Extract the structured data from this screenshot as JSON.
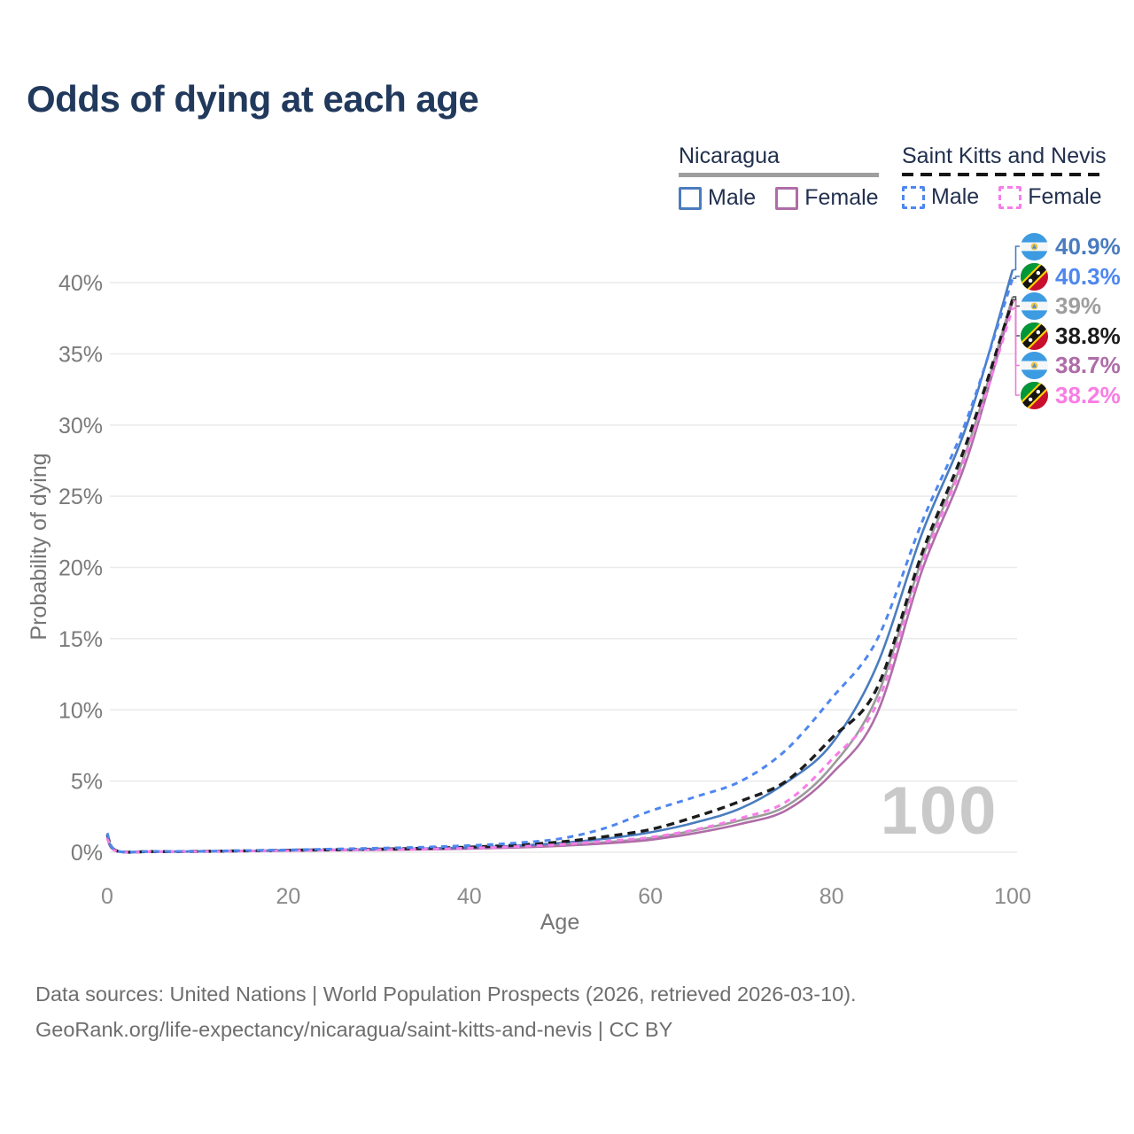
{
  "title": "Odds of dying at each age",
  "legend": {
    "groups": [
      {
        "label": "Nicaragua",
        "underline_style": "solid",
        "underline_color": "#9e9e9e",
        "items": [
          {
            "label": "Male",
            "color": "#4a7cbe",
            "style": "solid"
          },
          {
            "label": "Female",
            "color": "#af6da7",
            "style": "solid"
          }
        ]
      },
      {
        "label": "Saint Kitts and Nevis",
        "underline_style": "dashed",
        "underline_color": "#151515",
        "items": [
          {
            "label": "Male",
            "color": "#4e87ef",
            "style": "dashed"
          },
          {
            "label": "Female",
            "color": "#f77de8",
            "style": "dashed"
          }
        ]
      }
    ]
  },
  "chart_data": {
    "type": "line",
    "title": "Odds of dying at each age",
    "xlabel": "Age",
    "ylabel": "Probability of dying",
    "xlim": [
      0,
      100
    ],
    "ylim_percent": [
      0,
      40
    ],
    "x_ticks": [
      0,
      20,
      40,
      60,
      80,
      100
    ],
    "y_tick_labels": [
      "0%",
      "5%",
      "10%",
      "15%",
      "20%",
      "25%",
      "30%",
      "35%",
      "40%"
    ],
    "grid": "horizontal",
    "watermark": "100",
    "ages": [
      0,
      1,
      5,
      10,
      15,
      20,
      25,
      30,
      35,
      40,
      45,
      50,
      55,
      60,
      65,
      70,
      75,
      80,
      85,
      90,
      95,
      100
    ],
    "series": [
      {
        "key": "nic-male",
        "name": "Nicaragua Male",
        "country": "Nicaragua",
        "sex": "Male",
        "flag": "nicaragua",
        "style": "solid",
        "color": "#4a7cbe",
        "width": 2.6,
        "dash": "",
        "end_label": "40.9%",
        "end_value_percent": 40.9,
        "label_color": "#4a7cbe",
        "values_percent": [
          1.15,
          0.1,
          0.05,
          0.06,
          0.1,
          0.14,
          0.18,
          0.22,
          0.27,
          0.33,
          0.45,
          0.65,
          0.95,
          1.4,
          2.1,
          3.1,
          4.9,
          7.6,
          13.1,
          22.4,
          30.1,
          40.9
        ]
      },
      {
        "key": "skn-male",
        "name": "Saint Kitts and Nevis Male",
        "country": "Saint Kitts and Nevis",
        "sex": "Male",
        "flag": "saint-kitts-and-nevis",
        "style": "dashed",
        "color": "#4e87ef",
        "width": 3,
        "dash": "7 6",
        "end_label": "40.3%",
        "end_value_percent": 40.3,
        "label_color": "#4e87ef",
        "values_percent": [
          1.35,
          0.12,
          0.06,
          0.07,
          0.12,
          0.17,
          0.23,
          0.29,
          0.36,
          0.47,
          0.65,
          0.95,
          1.7,
          2.9,
          3.9,
          5.0,
          7.2,
          10.8,
          14.9,
          23.2,
          30.5,
          40.3
        ]
      },
      {
        "key": "nic-both",
        "name": "Nicaragua Both sexes",
        "country": "Nicaragua",
        "sex": "Both",
        "flag": "nicaragua",
        "style": "solid",
        "color": "#9b9b9b",
        "width": 2.6,
        "dash": "",
        "end_label": "39%",
        "end_value_percent": 39.0,
        "label_color": "#9e9e9e",
        "values_percent": [
          1.05,
          0.09,
          0.045,
          0.055,
          0.09,
          0.12,
          0.15,
          0.18,
          0.22,
          0.27,
          0.36,
          0.5,
          0.7,
          1.0,
          1.55,
          2.25,
          3.25,
          6.0,
          10.9,
          20.6,
          28.4,
          39.0
        ]
      },
      {
        "key": "skn-both",
        "name": "Saint Kitts and Nevis Both sexes",
        "country": "Saint Kitts and Nevis",
        "sex": "Both",
        "flag": "saint-kitts-and-nevis",
        "style": "dashed",
        "color": "#1c1c1c",
        "width": 3.4,
        "dash": "9 6",
        "end_label": "38.8%",
        "end_value_percent": 38.8,
        "label_color": "#1c1c1c",
        "values_percent": [
          1.25,
          0.11,
          0.05,
          0.06,
          0.1,
          0.14,
          0.18,
          0.22,
          0.28,
          0.36,
          0.5,
          0.72,
          1.1,
          1.6,
          2.5,
          3.6,
          5.0,
          8.0,
          11.5,
          21.0,
          28.9,
          38.8
        ]
      },
      {
        "key": "nic-female",
        "name": "Nicaragua Female",
        "country": "Nicaragua",
        "sex": "Female",
        "flag": "nicaragua",
        "style": "solid",
        "color": "#af6da7",
        "width": 2.6,
        "dash": "",
        "end_label": "38.7%",
        "end_value_percent": 38.7,
        "label_color": "#af6da7",
        "values_percent": [
          0.95,
          0.08,
          0.04,
          0.05,
          0.08,
          0.11,
          0.14,
          0.17,
          0.2,
          0.25,
          0.33,
          0.45,
          0.62,
          0.88,
          1.35,
          2.0,
          2.95,
          5.5,
          9.7,
          19.8,
          27.7,
          38.7
        ]
      },
      {
        "key": "skn-female",
        "name": "Saint Kitts and Nevis Female",
        "country": "Saint Kitts and Nevis",
        "sex": "Female",
        "flag": "saint-kitts-and-nevis",
        "style": "dashed",
        "color": "#f77de8",
        "width": 3,
        "dash": "7 6",
        "end_label": "38.2%",
        "end_value_percent": 38.2,
        "label_color": "#f97de4",
        "values_percent": [
          1.05,
          0.09,
          0.045,
          0.055,
          0.09,
          0.12,
          0.16,
          0.19,
          0.23,
          0.29,
          0.39,
          0.55,
          0.78,
          1.05,
          1.6,
          2.4,
          3.55,
          6.5,
          10.4,
          20.2,
          28.2,
          38.2
        ]
      }
    ]
  },
  "footer": {
    "line1": "Data sources: United Nations | World Population Prospects (2026, retrieved 2026-03-10).",
    "line2": "GeoRank.org/life-expectancy/nicaragua/saint-kitts-and-nevis | CC BY"
  }
}
